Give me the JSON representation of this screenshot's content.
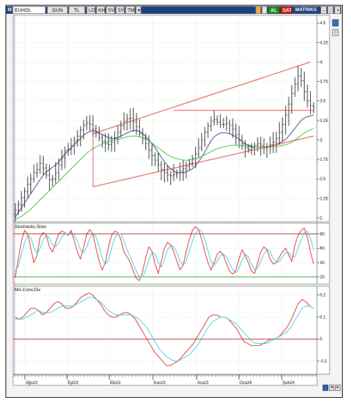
{
  "toolbar": {
    "menu_letter": "M",
    "symbol": "EUHOL",
    "period": "GUN",
    "currency": "TL",
    "log": "LOG",
    "khn": "KHN",
    "svd": "SVD",
    "sym": "SYM",
    "tmp": "TMP",
    "buy": "AL",
    "sell": "SAT",
    "app": "MATRIKS",
    "colors": {
      "bar": "#1f3f7a",
      "buy": "#1f8a2a",
      "sell": "#c81e1e"
    }
  },
  "chart_data": [
    {
      "type": "line",
      "title": "",
      "subtype": "ohlc-bars-with-moving-averages",
      "ylim": [
        1.95,
        4.6
      ],
      "y_ticks": [
        2,
        2.25,
        2.5,
        2.75,
        3,
        3.25,
        3.5,
        3.75,
        4,
        4.25,
        4.5
      ],
      "y_tick_labels": [
        "2.",
        "2.25",
        "2.5",
        "2.75",
        "3.",
        "3.25",
        "3.5",
        "3.75",
        "4.",
        "4.25",
        "4.5"
      ],
      "x_month_labels": [
        "Ağu23",
        "Eyl23",
        "Eki23",
        "Kas23",
        "Ara23",
        "Oca24",
        "Şub24"
      ],
      "close": [
        2.1,
        2.17,
        2.26,
        2.34,
        2.43,
        2.5,
        2.58,
        2.62,
        2.7,
        2.64,
        2.55,
        2.49,
        2.5,
        2.58,
        2.68,
        2.77,
        2.86,
        2.88,
        2.93,
        2.99,
        3.05,
        3.13,
        3.19,
        3.22,
        3.2,
        3.14,
        3.09,
        3.03,
        2.98,
        2.95,
        2.94,
        2.97,
        3.03,
        3.1,
        3.18,
        3.24,
        3.27,
        3.28,
        3.23,
        3.17,
        3.08,
        3.02,
        2.95,
        2.87,
        2.8,
        2.74,
        2.68,
        2.62,
        2.58,
        2.55,
        2.54,
        2.56,
        2.58,
        2.6,
        2.63,
        2.66,
        2.7,
        2.76,
        2.82,
        2.9,
        3.0,
        3.1,
        3.18,
        3.24,
        3.26,
        3.23,
        3.2,
        3.2,
        3.22,
        3.19,
        3.14,
        3.07,
        3.0,
        2.95,
        2.9,
        2.88,
        2.9,
        2.93,
        2.95,
        2.93,
        2.9,
        2.91,
        2.94,
        2.97,
        3.02,
        3.1,
        3.2,
        3.32,
        3.46,
        3.6,
        3.72,
        3.82,
        3.76,
        3.62,
        3.5,
        3.44,
        3.42
      ],
      "series": [
        {
          "name": "",
          "color": "#1f1f7a",
          "values": [
            2.01,
            2.07,
            2.13,
            2.19,
            2.25,
            2.31,
            2.37,
            2.43,
            2.49,
            2.55,
            2.59,
            2.62,
            2.65,
            2.68,
            2.72,
            2.77,
            2.82,
            2.86,
            2.9,
            2.94,
            2.98,
            3.02,
            3.06,
            3.09,
            3.11,
            3.12,
            3.11,
            3.09,
            3.07,
            3.05,
            3.03,
            3.02,
            3.02,
            3.03,
            3.05,
            3.07,
            3.09,
            3.11,
            3.12,
            3.12,
            3.11,
            3.08,
            3.04,
            3.0,
            2.95,
            2.9,
            2.84,
            2.78,
            2.72,
            2.67,
            2.63,
            2.6,
            2.58,
            2.58,
            2.58,
            2.59,
            2.61,
            2.63,
            2.67,
            2.72,
            2.78,
            2.85,
            2.92,
            2.99,
            3.04,
            3.07,
            3.09,
            3.09,
            3.09,
            3.08,
            3.06,
            3.04,
            3.01,
            2.98,
            2.95,
            2.93,
            2.92,
            2.91,
            2.91,
            2.91,
            2.91,
            2.91,
            2.92,
            2.93,
            2.94,
            2.96,
            2.98,
            3.01,
            3.05,
            3.1,
            3.15,
            3.2,
            3.25,
            3.28,
            3.3,
            3.31,
            3.32
          ]
        },
        {
          "name": "",
          "color": "#22b422",
          "values": [
            1.98,
            2.0,
            2.02,
            2.05,
            2.08,
            2.11,
            2.15,
            2.19,
            2.23,
            2.27,
            2.31,
            2.35,
            2.39,
            2.43,
            2.47,
            2.51,
            2.55,
            2.59,
            2.63,
            2.67,
            2.71,
            2.75,
            2.79,
            2.83,
            2.86,
            2.89,
            2.91,
            2.93,
            2.95,
            2.97,
            2.98,
            2.99,
            3.0,
            3.01,
            3.02,
            3.03,
            3.04,
            3.05,
            3.05,
            3.05,
            3.04,
            3.03,
            3.01,
            2.99,
            2.96,
            2.93,
            2.9,
            2.87,
            2.84,
            2.81,
            2.79,
            2.77,
            2.76,
            2.75,
            2.74,
            2.74,
            2.74,
            2.75,
            2.76,
            2.77,
            2.79,
            2.81,
            2.83,
            2.85,
            2.87,
            2.89,
            2.9,
            2.91,
            2.92,
            2.93,
            2.93,
            2.93,
            2.93,
            2.93,
            2.92,
            2.92,
            2.91,
            2.91,
            2.91,
            2.91,
            2.91,
            2.91,
            2.91,
            2.91,
            2.92,
            2.92,
            2.93,
            2.94,
            2.95,
            2.97,
            3.0,
            3.03,
            3.06,
            3.09,
            3.11,
            3.13,
            3.15
          ]
        }
      ],
      "annotations": {
        "channel_upper": [
          [
            25,
            3.08
          ],
          [
            95,
            4.0
          ]
        ],
        "channel_lower": [
          [
            25,
            2.4
          ],
          [
            96,
            3.05
          ]
        ],
        "horizontal_level": {
          "from": 51,
          "to": 96,
          "y": 3.38
        }
      }
    },
    {
      "type": "line",
      "title": "Stochastic,Slow",
      "ylim": [
        10,
        95
      ],
      "y_ticks": [
        20,
        40,
        60,
        80
      ],
      "y_tick_labels": [
        "20.",
        "40.",
        "60.",
        "80."
      ],
      "ref_lines": [
        {
          "y": 80,
          "color": "#a01010"
        },
        {
          "y": 20,
          "color": "#1a8a1a"
        }
      ],
      "series": [
        {
          "name": "",
          "color": "#e01010",
          "values": [
            20,
            45,
            70,
            85,
            80,
            60,
            40,
            50,
            75,
            82,
            78,
            62,
            55,
            68,
            80,
            84,
            82,
            78,
            85,
            70,
            55,
            45,
            62,
            80,
            86,
            80,
            60,
            42,
            30,
            40,
            62,
            78,
            84,
            82,
            72,
            55,
            48,
            40,
            28,
            18,
            15,
            28,
            48,
            62,
            56,
            38,
            25,
            42,
            60,
            68,
            65,
            55,
            42,
            30,
            36,
            55,
            72,
            85,
            90,
            86,
            72,
            55,
            40,
            30,
            40,
            52,
            56,
            50,
            38,
            28,
            24,
            30,
            45,
            58,
            50,
            40,
            28,
            25,
            40,
            55,
            62,
            58,
            45,
            38,
            40,
            48,
            55,
            60,
            50,
            42,
            65,
            78,
            85,
            88,
            75,
            55,
            38
          ]
        },
        {
          "name": "",
          "color": "#22c8e0",
          "values": [
            28,
            35,
            52,
            68,
            78,
            75,
            62,
            52,
            60,
            72,
            78,
            74,
            65,
            62,
            68,
            76,
            80,
            80,
            82,
            78,
            70,
            58,
            54,
            62,
            74,
            80,
            76,
            62,
            46,
            38,
            44,
            60,
            74,
            80,
            80,
            70,
            58,
            48,
            38,
            28,
            20,
            20,
            30,
            44,
            54,
            52,
            40,
            34,
            44,
            58,
            64,
            62,
            54,
            42,
            36,
            42,
            56,
            70,
            80,
            86,
            84,
            72,
            56,
            42,
            36,
            42,
            50,
            52,
            48,
            38,
            30,
            26,
            32,
            44,
            52,
            48,
            38,
            30,
            32,
            42,
            52,
            58,
            56,
            46,
            40,
            42,
            48,
            54,
            54,
            48,
            48,
            60,
            72,
            82,
            84,
            74,
            58
          ]
        }
      ]
    },
    {
      "type": "line",
      "title": "MA.Conv.Div",
      "ylim": [
        -0.16,
        0.24
      ],
      "y_ticks": [
        -0.1,
        0,
        0.1,
        0.2
      ],
      "y_tick_labels": [
        "-0.1",
        "0.",
        "0.1",
        "0.2"
      ],
      "ref_lines": [
        {
          "y": 0,
          "color": "#a01010"
        }
      ],
      "series": [
        {
          "name": "",
          "color": "#e01010",
          "values": [
            0.1,
            0.09,
            0.1,
            0.12,
            0.14,
            0.14,
            0.13,
            0.11,
            0.12,
            0.14,
            0.16,
            0.17,
            0.16,
            0.14,
            0.14,
            0.15,
            0.17,
            0.19,
            0.2,
            0.21,
            0.2,
            0.18,
            0.16,
            0.13,
            0.11,
            0.1,
            0.1,
            0.11,
            0.12,
            0.12,
            0.11,
            0.09,
            0.06,
            0.03,
            0.0,
            -0.03,
            -0.06,
            -0.08,
            -0.1,
            -0.12,
            -0.12,
            -0.11,
            -0.1,
            -0.08,
            -0.06,
            -0.04,
            -0.02,
            0.01,
            0.04,
            0.07,
            0.1,
            0.11,
            0.11,
            0.1,
            0.1,
            0.09,
            0.07,
            0.05,
            0.02,
            -0.01,
            -0.02,
            -0.03,
            -0.03,
            -0.03,
            -0.02,
            -0.01,
            0.0,
            0.0,
            0.01,
            0.03,
            0.05,
            0.08,
            0.12,
            0.16,
            0.18,
            0.17,
            0.15,
            0.14
          ]
        },
        {
          "name": "",
          "color": "#22c8e0",
          "values": [
            0.09,
            0.09,
            0.09,
            0.1,
            0.11,
            0.12,
            0.13,
            0.12,
            0.12,
            0.12,
            0.13,
            0.14,
            0.15,
            0.15,
            0.15,
            0.15,
            0.16,
            0.17,
            0.18,
            0.19,
            0.19,
            0.18,
            0.17,
            0.15,
            0.13,
            0.12,
            0.11,
            0.11,
            0.11,
            0.11,
            0.11,
            0.1,
            0.09,
            0.07,
            0.05,
            0.02,
            -0.01,
            -0.04,
            -0.06,
            -0.08,
            -0.09,
            -0.1,
            -0.1,
            -0.09,
            -0.08,
            -0.07,
            -0.05,
            -0.03,
            0.0,
            0.03,
            0.06,
            0.08,
            0.09,
            0.1,
            0.1,
            0.09,
            0.08,
            0.07,
            0.05,
            0.03,
            0.01,
            -0.01,
            -0.02,
            -0.02,
            -0.02,
            -0.02,
            -0.01,
            0.0,
            0.01,
            0.02,
            0.03,
            0.05,
            0.08,
            0.11,
            0.14,
            0.15,
            0.15,
            0.14
          ]
        }
      ]
    }
  ]
}
